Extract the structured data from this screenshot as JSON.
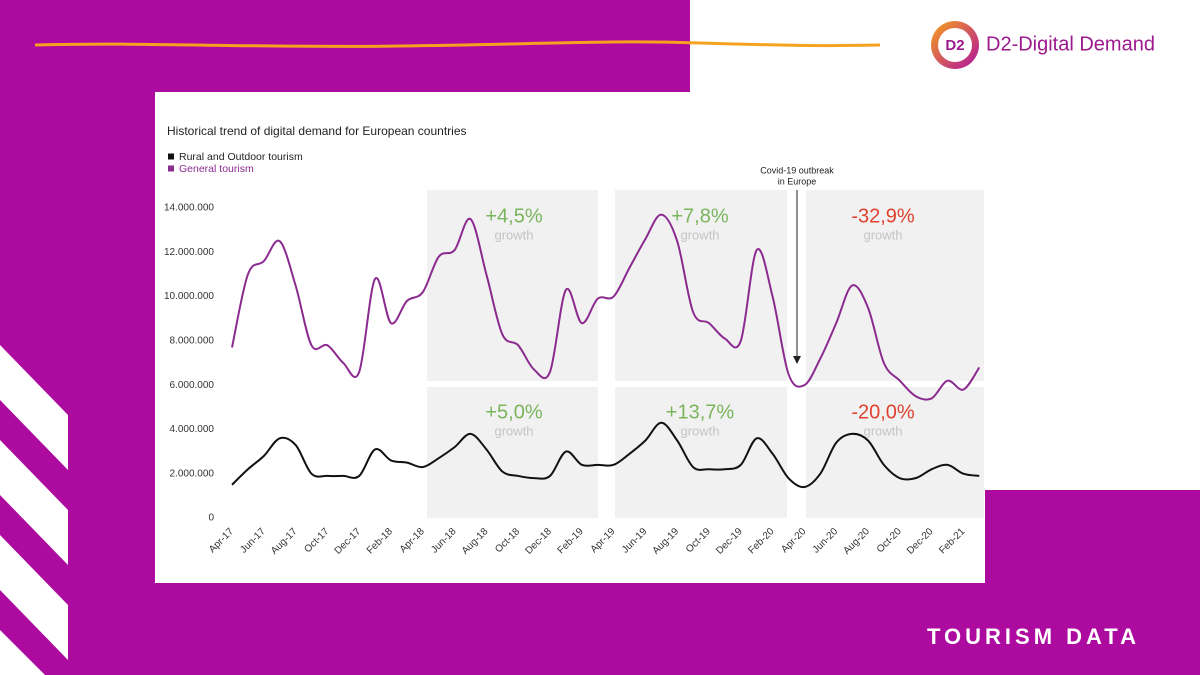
{
  "header": {
    "logo": "D2",
    "brand": "D2-Digital Demand"
  },
  "footer": "TOURISM DATA",
  "chart_data": {
    "type": "line",
    "title": "Historical trend of digital demand for European countries",
    "categories": [
      "Apr-17",
      null,
      "Jun-17",
      null,
      "Aug-17",
      null,
      "Oct-17",
      null,
      "Dec-17",
      null,
      "Feb-18",
      null,
      "Apr-18",
      null,
      "Jun-18",
      null,
      "Aug-18",
      null,
      "Oct-18",
      null,
      "Dec-18",
      null,
      "Feb-19",
      null,
      "Apr-19",
      null,
      "Jun-19",
      null,
      "Aug-19",
      null,
      "Oct-19",
      null,
      "Dec-19",
      null,
      "Feb-20",
      null,
      "Apr-20",
      null,
      "Jun-20",
      null,
      "Aug-20",
      null,
      "Oct-20",
      null,
      "Dec-20",
      null,
      "Feb-21",
      null
    ],
    "series": [
      {
        "name": "Rural and Outdoor tourism",
        "color": "#111111",
        "values": [
          1500000,
          2200000,
          2800000,
          3600000,
          3300000,
          2000000,
          1900000,
          1900000,
          1900000,
          3100000,
          2600000,
          2500000,
          2300000,
          2700000,
          3200000,
          3800000,
          3100000,
          2100000,
          1900000,
          1800000,
          1900000,
          3000000,
          2400000,
          2400000,
          2400000,
          2900000,
          3500000,
          4300000,
          3500000,
          2300000,
          2200000,
          2200000,
          2400000,
          3600000,
          2900000,
          1800000,
          1400000,
          2000000,
          3400000,
          3800000,
          3500000,
          2400000,
          1800000,
          1800000,
          2200000,
          2400000,
          2000000,
          1900000
        ]
      },
      {
        "name": "General tourism",
        "color": "#8b2a8f",
        "values": [
          7700000,
          11000000,
          11600000,
          12500000,
          10500000,
          7800000,
          7800000,
          7000000,
          6600000,
          10800000,
          8800000,
          9800000,
          10200000,
          11800000,
          12100000,
          13500000,
          11000000,
          8300000,
          7800000,
          6700000,
          6600000,
          10300000,
          8800000,
          9900000,
          10000000,
          11300000,
          12600000,
          13700000,
          12500000,
          9300000,
          8800000,
          8100000,
          8000000,
          12100000,
          10000000,
          6500000,
          6000000,
          7200000,
          8800000,
          10500000,
          9500000,
          7000000,
          6200000,
          5500000,
          5400000,
          6200000,
          5800000,
          6800000
        ]
      }
    ],
    "ylim": [
      0,
      14000000
    ],
    "yticks": [
      0,
      {
        "value": 2000000,
        "label": "2.000.000"
      },
      {
        "value": 4000000,
        "label": "4.000.000"
      },
      {
        "value": 6000000,
        "label": "6.000.000"
      },
      {
        "value": 8000000,
        "label": "8.000.000"
      },
      {
        "value": 10000000,
        "label": "10.000.000"
      },
      {
        "value": 12000000,
        "label": "12.000.000"
      },
      {
        "value": 14000000,
        "label": "14.000.000"
      }
    ],
    "grid": false,
    "annotations": [
      {
        "text": "+4,5%",
        "sub": "growth",
        "color": "#7ab55c"
      },
      {
        "text": "+7,8%",
        "sub": "growth",
        "color": "#7ab55c"
      },
      {
        "text": "-32,9%",
        "sub": "growth",
        "color": "#e0402e"
      },
      {
        "text": "+5,0%",
        "sub": "growth",
        "color": "#7ab55c"
      },
      {
        "text": "+13,7%",
        "sub": "growth",
        "color": "#7ab55c"
      },
      {
        "text": "-20,0%",
        "sub": "growth",
        "color": "#e0402e"
      }
    ],
    "event_note": [
      "Covid-19 outbreak",
      "in Europe"
    ]
  }
}
